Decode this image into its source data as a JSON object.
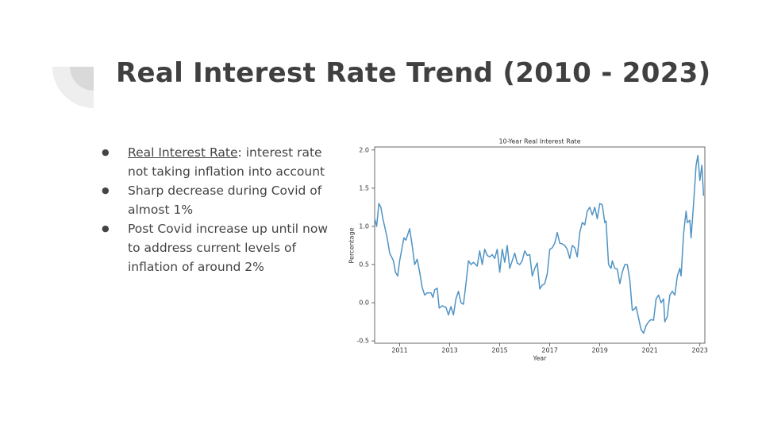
{
  "header": {
    "title": "Real Interest Rate Trend (2010 - 2023)"
  },
  "bullets": [
    {
      "term": "Real Interest Rate",
      "text": ": interest rate not taking inflation into account"
    },
    "Sharp decrease during Covid of almost 1%",
    "Post Covid increase up until now to address current levels of inflation of around 2%"
  ],
  "chart_data": {
    "type": "line",
    "title": "10-Year Real Interest Rate",
    "x_label": "Year",
    "y_label": "Percentage",
    "color": "#4f93c4",
    "x": [
      2010.0,
      2010.08,
      2010.17,
      2010.25,
      2010.33,
      2010.5,
      2010.6,
      2010.75,
      2010.83,
      2010.92,
      2011.0,
      2011.17,
      2011.25,
      2011.4,
      2011.5,
      2011.6,
      2011.7,
      2011.8,
      2011.9,
      2012.0,
      2012.1,
      2012.25,
      2012.33,
      2012.4,
      2012.5,
      2012.58,
      2012.7,
      2012.85,
      2012.95,
      2013.05,
      2013.15,
      2013.25,
      2013.35,
      2013.45,
      2013.55,
      2013.65,
      2013.75,
      2013.85,
      2013.95,
      2014.1,
      2014.2,
      2014.3,
      2014.4,
      2014.5,
      2014.6,
      2014.7,
      2014.8,
      2014.9,
      2015.0,
      2015.1,
      2015.2,
      2015.3,
      2015.4,
      2015.5,
      2015.6,
      2015.7,
      2015.8,
      2015.9,
      2016.0,
      2016.1,
      2016.2,
      2016.3,
      2016.4,
      2016.5,
      2016.6,
      2016.7,
      2016.8,
      2016.9,
      2017.0,
      2017.1,
      2017.2,
      2017.3,
      2017.4,
      2017.5,
      2017.6,
      2017.7,
      2017.8,
      2017.9,
      2018.0,
      2018.1,
      2018.2,
      2018.3,
      2018.4,
      2018.5,
      2018.6,
      2018.7,
      2018.8,
      2018.9,
      2019.0,
      2019.1,
      2019.2,
      2019.25,
      2019.35,
      2019.45,
      2019.5,
      2019.6,
      2019.7,
      2019.8,
      2019.9,
      2020.0,
      2020.1,
      2020.2,
      2020.3,
      2020.4,
      2020.45,
      2020.55,
      2020.65,
      2020.75,
      2020.85,
      2020.95,
      2021.05,
      2021.15,
      2021.25,
      2021.35,
      2021.45,
      2021.55,
      2021.6,
      2021.7,
      2021.8,
      2021.9,
      2022.0,
      2022.1,
      2022.2,
      2022.25,
      2022.35,
      2022.45,
      2022.5,
      2022.6,
      2022.65,
      2022.75,
      2022.85,
      2022.92,
      2023.0,
      2023.08,
      2023.15
    ],
    "values": [
      1.1,
      1.0,
      1.3,
      1.25,
      1.1,
      0.85,
      0.65,
      0.55,
      0.4,
      0.35,
      0.55,
      0.85,
      0.82,
      0.97,
      0.75,
      0.5,
      0.57,
      0.4,
      0.2,
      0.1,
      0.13,
      0.13,
      0.07,
      0.17,
      0.19,
      -0.07,
      -0.04,
      -0.06,
      -0.16,
      -0.05,
      -0.16,
      0.05,
      0.15,
      0.0,
      -0.02,
      0.25,
      0.55,
      0.5,
      0.53,
      0.48,
      0.68,
      0.5,
      0.7,
      0.62,
      0.6,
      0.63,
      0.58,
      0.7,
      0.4,
      0.7,
      0.53,
      0.75,
      0.45,
      0.55,
      0.65,
      0.52,
      0.5,
      0.55,
      0.68,
      0.62,
      0.63,
      0.35,
      0.45,
      0.52,
      0.18,
      0.23,
      0.25,
      0.38,
      0.7,
      0.72,
      0.78,
      0.92,
      0.78,
      0.77,
      0.75,
      0.7,
      0.58,
      0.75,
      0.72,
      0.6,
      0.92,
      1.05,
      1.02,
      1.2,
      1.25,
      1.15,
      1.25,
      1.1,
      1.3,
      1.28,
      1.05,
      1.07,
      0.5,
      0.45,
      0.55,
      0.45,
      0.44,
      0.25,
      0.4,
      0.5,
      0.5,
      0.3,
      -0.1,
      -0.08,
      -0.05,
      -0.2,
      -0.35,
      -0.4,
      -0.3,
      -0.25,
      -0.22,
      -0.23,
      0.05,
      0.1,
      0.0,
      0.05,
      -0.25,
      -0.18,
      0.1,
      0.15,
      0.1,
      0.35,
      0.45,
      0.35,
      0.9,
      1.2,
      1.05,
      1.08,
      0.85,
      1.3,
      1.8,
      1.93,
      1.6,
      1.8,
      1.4
    ],
    "xlim": [
      2010.0,
      2023.2
    ],
    "xticks": [
      2011,
      2013,
      2015,
      2017,
      2019,
      2021,
      2023
    ],
    "ylim": [
      -0.53,
      2.04
    ],
    "yticks": [
      -0.5,
      {
        "value": 0,
        "label": "0.0"
      },
      0.5,
      {
        "value": 1,
        "label": "1.0"
      },
      1.5,
      {
        "value": 2,
        "label": "2.0"
      }
    ],
    "grid": false
  }
}
